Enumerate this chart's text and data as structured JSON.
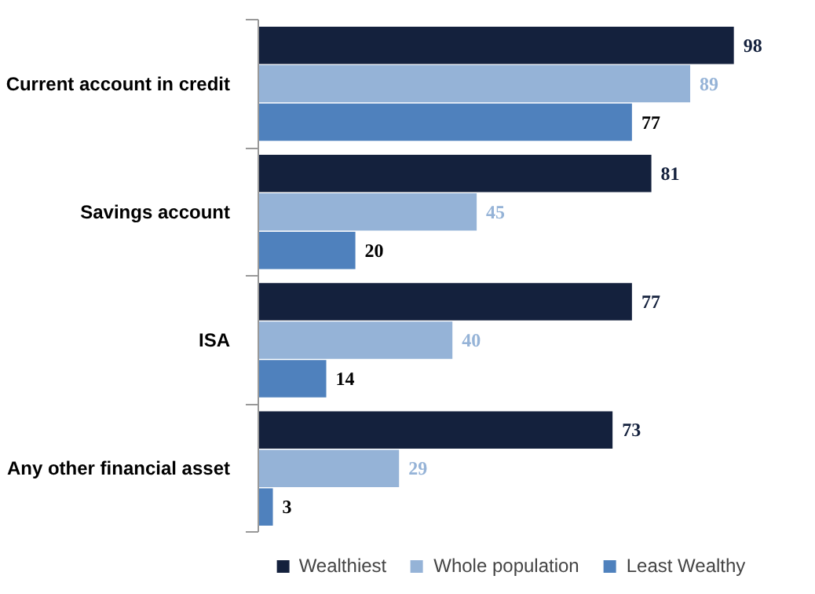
{
  "chart_data": {
    "type": "bar",
    "orientation": "horizontal",
    "categories": [
      "Current account in credit",
      "Savings account",
      "ISA",
      "Any other financial asset"
    ],
    "series": [
      {
        "name": "Wealthiest",
        "color": "#14213d",
        "values": [
          98,
          81,
          77,
          73
        ]
      },
      {
        "name": "Whole population",
        "color": "#95b3d7",
        "values": [
          89,
          45,
          40,
          29
        ]
      },
      {
        "name": "Least Wealthy",
        "color": "#4f81bd",
        "values": [
          77,
          20,
          14,
          3
        ]
      }
    ],
    "data_labels": true,
    "legend": "bottom",
    "grid": false
  }
}
